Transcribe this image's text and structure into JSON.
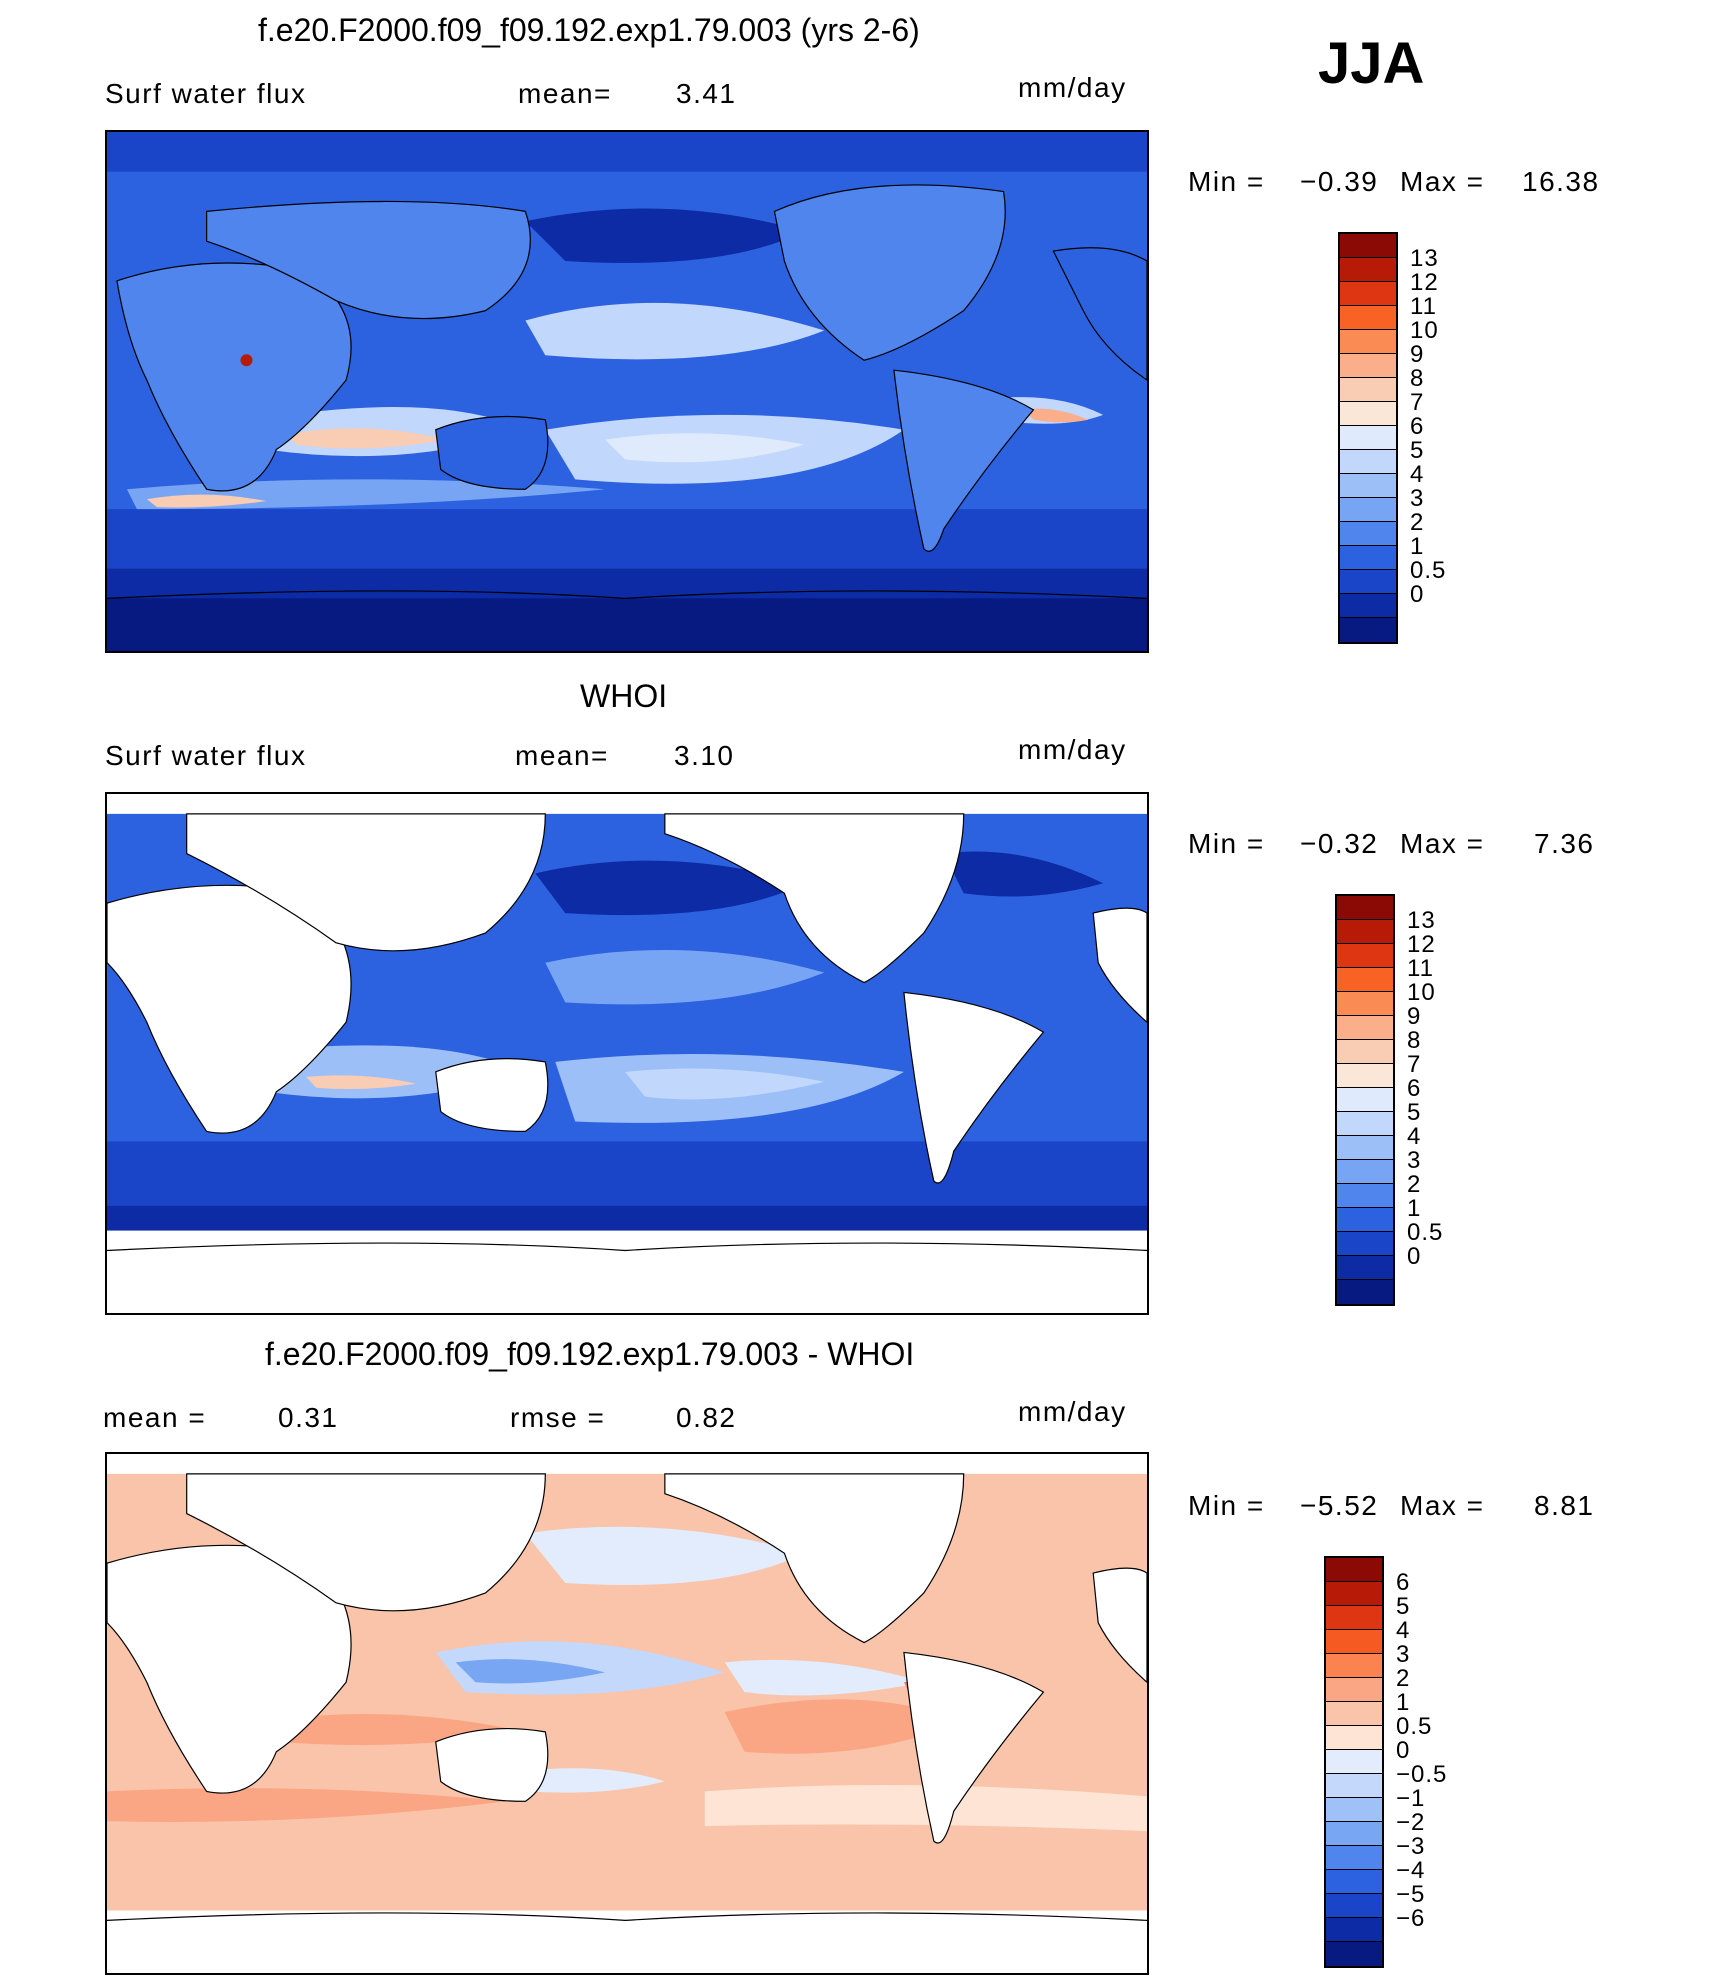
{
  "season": "JJA",
  "panels": [
    {
      "title": "f.e20.F2000.f09_f09.192.exp1.79.003 (yrs 2-6)",
      "left_label": "Surf water flux",
      "mid_label": "mean=",
      "mid_value": "3.41",
      "right_label": "mm/day",
      "min_label": "Min =",
      "min_value": "−0.39",
      "max_label": "Max =",
      "max_value": "16.38",
      "ticks": [
        "13",
        "12",
        "11",
        "10",
        "9",
        "8",
        "7",
        "6",
        "5",
        "4",
        "3",
        "2",
        "1",
        "0.5",
        "0"
      ],
      "colors": [
        "#8b0a05",
        "#b81a08",
        "#de3512",
        "#f86325",
        "#fb8b54",
        "#faaf8a",
        "#f9cdb3",
        "#fbe7d8",
        "#dfeafc",
        "#c1d7fb",
        "#9dbff8",
        "#78a5f3",
        "#4f85ec",
        "#2c62df",
        "#1a45c8",
        "#0c2ba5",
        "#061a82"
      ],
      "map_type": "model"
    },
    {
      "title": "WHOI",
      "left_label": "Surf water flux",
      "mid_label": "mean=",
      "mid_value": "3.10",
      "right_label": "mm/day",
      "min_label": "Min =",
      "min_value": "−0.32",
      "max_label": "Max =",
      "max_value": "7.36",
      "ticks": [
        "13",
        "12",
        "11",
        "10",
        "9",
        "8",
        "7",
        "6",
        "5",
        "4",
        "3",
        "2",
        "1",
        "0.5",
        "0"
      ],
      "colors": [
        "#8b0a05",
        "#b81a08",
        "#de3512",
        "#f86325",
        "#fb8b54",
        "#faaf8a",
        "#f9cdb3",
        "#fbe7d8",
        "#dfeafc",
        "#c1d7fb",
        "#9dbff8",
        "#78a5f3",
        "#4f85ec",
        "#2c62df",
        "#1a45c8",
        "#0c2ba5",
        "#061a82"
      ],
      "map_type": "obs"
    },
    {
      "title": "f.e20.F2000.f09_f09.192.exp1.79.003 - WHOI",
      "left_label": "mean =",
      "left_value": "0.31",
      "mid_label": "rmse =",
      "mid_value": "0.82",
      "right_label": "mm/day",
      "min_label": "Min =",
      "min_value": "−5.52",
      "max_label": "Max =",
      "max_value": "8.81",
      "ticks": [
        "6",
        "5",
        "4",
        "3",
        "2",
        "1",
        "0.5",
        "0",
        "−0.5",
        "−1",
        "−2",
        "−3",
        "−4",
        "−5",
        "−6"
      ],
      "colors": [
        "#8b0a05",
        "#b81a08",
        "#de3512",
        "#f55a22",
        "#fa8350",
        "#faa684",
        "#f9c4aa",
        "#fde4d4",
        "#e2ecfc",
        "#c3d8fb",
        "#9fc1f8",
        "#79a6f3",
        "#4f85ec",
        "#2c62df",
        "#1a45c8",
        "#0c2ba5",
        "#061a82"
      ],
      "map_type": "diff"
    }
  ]
}
